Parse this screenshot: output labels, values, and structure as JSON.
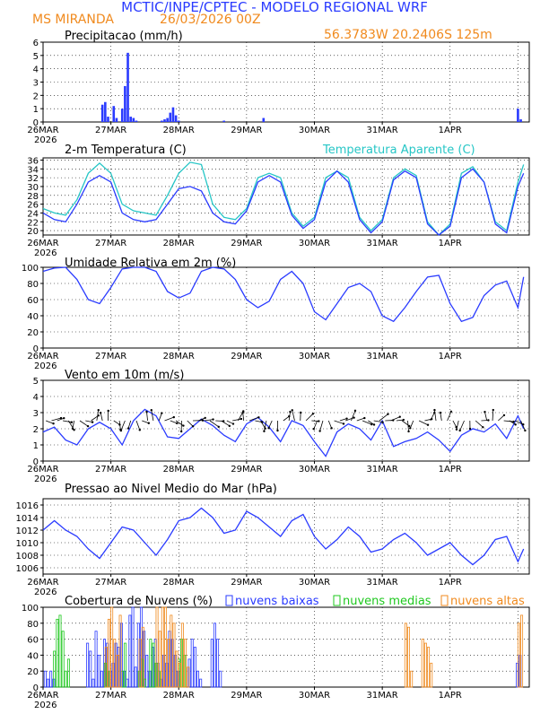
{
  "header": {
    "title": "MCTIC/INPE/CPTEC - MODELO REGIONAL WRF",
    "location": "MS MIRANDA",
    "run": "26/03/2026 00Z",
    "coords": "56.3783W 20.2406S 125m"
  },
  "colors": {
    "blue": "#2a3bff",
    "orange": "#f08a1e",
    "green": "#1ec81e",
    "cyan": "#26c6c6",
    "axis": "#000000"
  },
  "day_labels": [
    "26MAR",
    "27MAR",
    "28MAR",
    "29MAR",
    "30MAR",
    "31MAR",
    "1APR"
  ],
  "year_label": "2026",
  "chart_data": [
    {
      "type": "bar",
      "title": "Precipitacao (mm/h)",
      "ylim": [
        0,
        6
      ],
      "yticks": [
        0,
        1,
        2,
        3,
        4,
        5,
        6
      ],
      "x_unit": "hours since 26MAR 00Z",
      "x": [
        21,
        22,
        23,
        25,
        26,
        28,
        29,
        30,
        31,
        32,
        33,
        42,
        43,
        44,
        45,
        46,
        47,
        48,
        64,
        78,
        168,
        169
      ],
      "values": [
        1.3,
        1.5,
        0.4,
        1.2,
        0.3,
        1.0,
        2.7,
        5.2,
        0.4,
        0.3,
        0.1,
        0.1,
        0.2,
        0.3,
        0.7,
        1.1,
        0.5,
        0.1,
        0.1,
        0.3,
        1.0,
        0.2
      ]
    },
    {
      "type": "line",
      "title": "2-m Temperatura (C)",
      "ylim": [
        19,
        36.5
      ],
      "yticks": [
        20,
        22,
        24,
        26,
        28,
        30,
        32,
        34,
        36
      ],
      "x_unit": "hours since 26MAR 00Z",
      "series": [
        {
          "name": "Temperatura Aparente (C)",
          "color": "#26c6c6",
          "x": [
            0,
            4,
            8,
            12,
            16,
            20,
            24,
            28,
            32,
            36,
            40,
            44,
            48,
            52,
            56,
            60,
            64,
            68,
            72,
            76,
            80,
            84,
            88,
            92,
            96,
            100,
            104,
            108,
            112,
            116,
            120,
            124,
            128,
            132,
            136,
            140,
            144,
            148,
            152,
            156,
            160,
            164,
            168,
            170
          ],
          "values": [
            25,
            24,
            23.5,
            27,
            33,
            35.3,
            33,
            26,
            24.5,
            24,
            23.5,
            28,
            33,
            35.5,
            35,
            26,
            23,
            22.5,
            25,
            32,
            33,
            32,
            24,
            21,
            23,
            32,
            33.5,
            32,
            23,
            20,
            22.5,
            32,
            34,
            32.5,
            22,
            19,
            21.5,
            33,
            34.5,
            31,
            22,
            20,
            31,
            35
          ]
        },
        {
          "name": "Temperatura",
          "color": "#2a3bff",
          "x": [
            0,
            4,
            8,
            12,
            16,
            20,
            24,
            28,
            32,
            36,
            40,
            44,
            48,
            52,
            56,
            60,
            64,
            68,
            72,
            76,
            80,
            84,
            88,
            92,
            96,
            100,
            104,
            108,
            112,
            116,
            120,
            124,
            128,
            132,
            136,
            140,
            144,
            148,
            152,
            156,
            160,
            164,
            168,
            170
          ],
          "values": [
            24,
            22.5,
            22,
            26,
            31,
            32.5,
            31,
            24,
            22.5,
            22,
            22.5,
            26,
            29.5,
            30,
            29,
            24,
            22,
            21.5,
            24.5,
            31,
            32.5,
            31,
            23.5,
            20.5,
            22.5,
            31,
            33.5,
            31,
            22.5,
            19.5,
            22,
            31.5,
            33.5,
            32,
            21.5,
            19,
            21,
            32,
            34,
            31,
            21.5,
            19.5,
            30,
            33
          ]
        }
      ]
    },
    {
      "type": "line",
      "title": "Umidade Relativa em 2m (%)",
      "ylim": [
        0,
        100
      ],
      "yticks": [
        0,
        20,
        40,
        60,
        80,
        100
      ],
      "x_unit": "hours since 26MAR 00Z",
      "x": [
        0,
        4,
        8,
        12,
        16,
        20,
        24,
        28,
        32,
        36,
        40,
        44,
        48,
        52,
        56,
        60,
        64,
        68,
        72,
        76,
        80,
        84,
        88,
        92,
        96,
        100,
        104,
        108,
        112,
        116,
        120,
        124,
        128,
        132,
        136,
        140,
        144,
        148,
        152,
        156,
        160,
        164,
        168,
        170
      ],
      "values": [
        95,
        99,
        100,
        85,
        60,
        55,
        75,
        98,
        100,
        100,
        95,
        70,
        62,
        68,
        95,
        100,
        98,
        85,
        60,
        50,
        58,
        85,
        95,
        80,
        45,
        35,
        55,
        75,
        80,
        70,
        40,
        33,
        50,
        70,
        88,
        90,
        55,
        33,
        38,
        65,
        78,
        83,
        50,
        88
      ]
    },
    {
      "type": "line",
      "title": "Vento em 10m (m/s)",
      "ylim": [
        0,
        5
      ],
      "yticks": [
        0,
        1,
        2,
        3,
        4,
        5
      ],
      "x_unit": "hours since 26MAR 00Z",
      "x": [
        0,
        4,
        8,
        12,
        16,
        20,
        24,
        28,
        32,
        36,
        40,
        44,
        48,
        52,
        56,
        60,
        64,
        68,
        72,
        76,
        80,
        84,
        88,
        92,
        96,
        100,
        104,
        108,
        112,
        116,
        120,
        124,
        128,
        132,
        136,
        140,
        144,
        148,
        152,
        156,
        160,
        164,
        168,
        170
      ],
      "values": [
        1.8,
        2.1,
        1.3,
        1.0,
        2.0,
        2.4,
        2.0,
        1.0,
        2.5,
        3.2,
        2.8,
        1.5,
        1.4,
        2.0,
        2.6,
        2.2,
        1.6,
        1.2,
        2.3,
        2.7,
        2.1,
        1.2,
        2.5,
        2.2,
        1.2,
        0.3,
        1.8,
        2.3,
        2.0,
        1.3,
        2.5,
        0.9,
        1.2,
        1.4,
        1.8,
        1.3,
        0.6,
        1.6,
        2.0,
        1.8,
        2.3,
        1.4,
        2.8,
        2.0
      ]
    },
    {
      "type": "line",
      "title": "Pressao ao Nivel Medio do Mar (hPa)",
      "ylim": [
        1005,
        1017
      ],
      "yticks": [
        1006,
        1008,
        1010,
        1012,
        1014,
        1016
      ],
      "x_unit": "hours since 26MAR 00Z",
      "x": [
        0,
        4,
        8,
        12,
        16,
        20,
        24,
        28,
        32,
        36,
        40,
        44,
        48,
        52,
        56,
        60,
        64,
        68,
        72,
        76,
        80,
        84,
        88,
        92,
        96,
        100,
        104,
        108,
        112,
        116,
        120,
        124,
        128,
        132,
        136,
        140,
        144,
        148,
        152,
        156,
        160,
        164,
        168,
        170
      ],
      "values": [
        1012,
        1013.5,
        1012,
        1011,
        1009,
        1007.5,
        1010,
        1012.5,
        1012,
        1010,
        1008,
        1010.5,
        1013.5,
        1014,
        1015.5,
        1014,
        1011.5,
        1012,
        1015,
        1014,
        1012.5,
        1011,
        1013.5,
        1014.5,
        1011,
        1009,
        1010.5,
        1012.5,
        1011,
        1008.5,
        1009,
        1010.5,
        1011.5,
        1010,
        1008,
        1009,
        1010,
        1008,
        1006.5,
        1008,
        1010.5,
        1011,
        1007,
        1009
      ]
    },
    {
      "type": "bar",
      "title": "Cobertura de Nuvens (%)",
      "ylim": [
        0,
        100
      ],
      "yticks": [
        0,
        20,
        40,
        60,
        80,
        100
      ],
      "x_unit": "hours since 26MAR 00Z",
      "series": [
        {
          "name": "nuvens baixas",
          "color": "#2a3bff",
          "x": [
            1,
            2,
            3,
            4,
            16,
            17,
            18,
            19,
            20,
            21,
            22,
            23,
            24,
            25,
            26,
            27,
            28,
            29,
            30,
            31,
            32,
            33,
            34,
            35,
            36,
            37,
            38,
            39,
            40,
            41,
            42,
            43,
            44,
            45,
            46,
            47,
            48,
            52,
            53,
            54,
            55,
            56,
            60,
            61,
            62,
            63,
            168,
            169
          ],
          "values": [
            20,
            10,
            20,
            10,
            55,
            45,
            10,
            70,
            40,
            20,
            60,
            55,
            20,
            30,
            55,
            50,
            80,
            20,
            10,
            90,
            100,
            25,
            80,
            100,
            70,
            40,
            20,
            50,
            60,
            30,
            10,
            40,
            30,
            70,
            60,
            40,
            20,
            35,
            60,
            50,
            20,
            10,
            60,
            80,
            60,
            20,
            30,
            40
          ]
        },
        {
          "name": "nuvens medias",
          "color": "#1ec81e",
          "x": [
            4,
            5,
            6,
            7,
            8,
            9,
            22,
            23,
            28,
            29,
            34,
            35,
            36,
            38,
            39,
            40,
            41,
            48,
            49,
            50
          ],
          "values": [
            45,
            85,
            90,
            70,
            20,
            35,
            30,
            20,
            20,
            55,
            20,
            35,
            10,
            60,
            55,
            30,
            20,
            35,
            60,
            40
          ]
        },
        {
          "name": "nuvens altas",
          "color": "#f08a1e",
          "x": [
            22,
            23,
            24,
            25,
            26,
            27,
            34,
            35,
            40,
            41,
            42,
            43,
            44,
            45,
            46,
            47,
            48,
            49,
            50,
            51,
            128,
            129,
            130,
            134,
            135,
            136,
            137,
            168,
            169
          ],
          "values": [
            50,
            85,
            100,
            60,
            40,
            90,
            60,
            75,
            100,
            70,
            100,
            100,
            60,
            90,
            80,
            45,
            30,
            80,
            60,
            25,
            80,
            75,
            20,
            60,
            55,
            50,
            30,
            80,
            90
          ]
        }
      ]
    }
  ]
}
